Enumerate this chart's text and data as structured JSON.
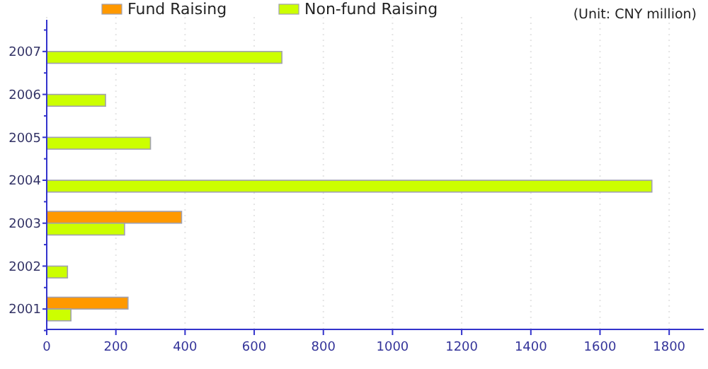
{
  "chart_data": {
    "type": "bar",
    "orientation": "horizontal",
    "categories": [
      "2007",
      "2006",
      "2005",
      "2004",
      "2003",
      "2002",
      "2001"
    ],
    "series": [
      {
        "name": "Fund Raising",
        "color": "#ff9900",
        "values": [
          null,
          null,
          null,
          null,
          390,
          null,
          235
        ]
      },
      {
        "name": "Non-fund Raising",
        "color": "#ccff00",
        "values": [
          680,
          170,
          300,
          1750,
          225,
          60,
          70
        ]
      }
    ],
    "xlim": [
      0,
      1900
    ],
    "xticks": [
      0,
      200,
      400,
      600,
      800,
      1000,
      1200,
      1400,
      1600,
      1800
    ],
    "grid": "x",
    "legend": "top",
    "annotations": [
      "(Unit: CNY million)"
    ]
  }
}
